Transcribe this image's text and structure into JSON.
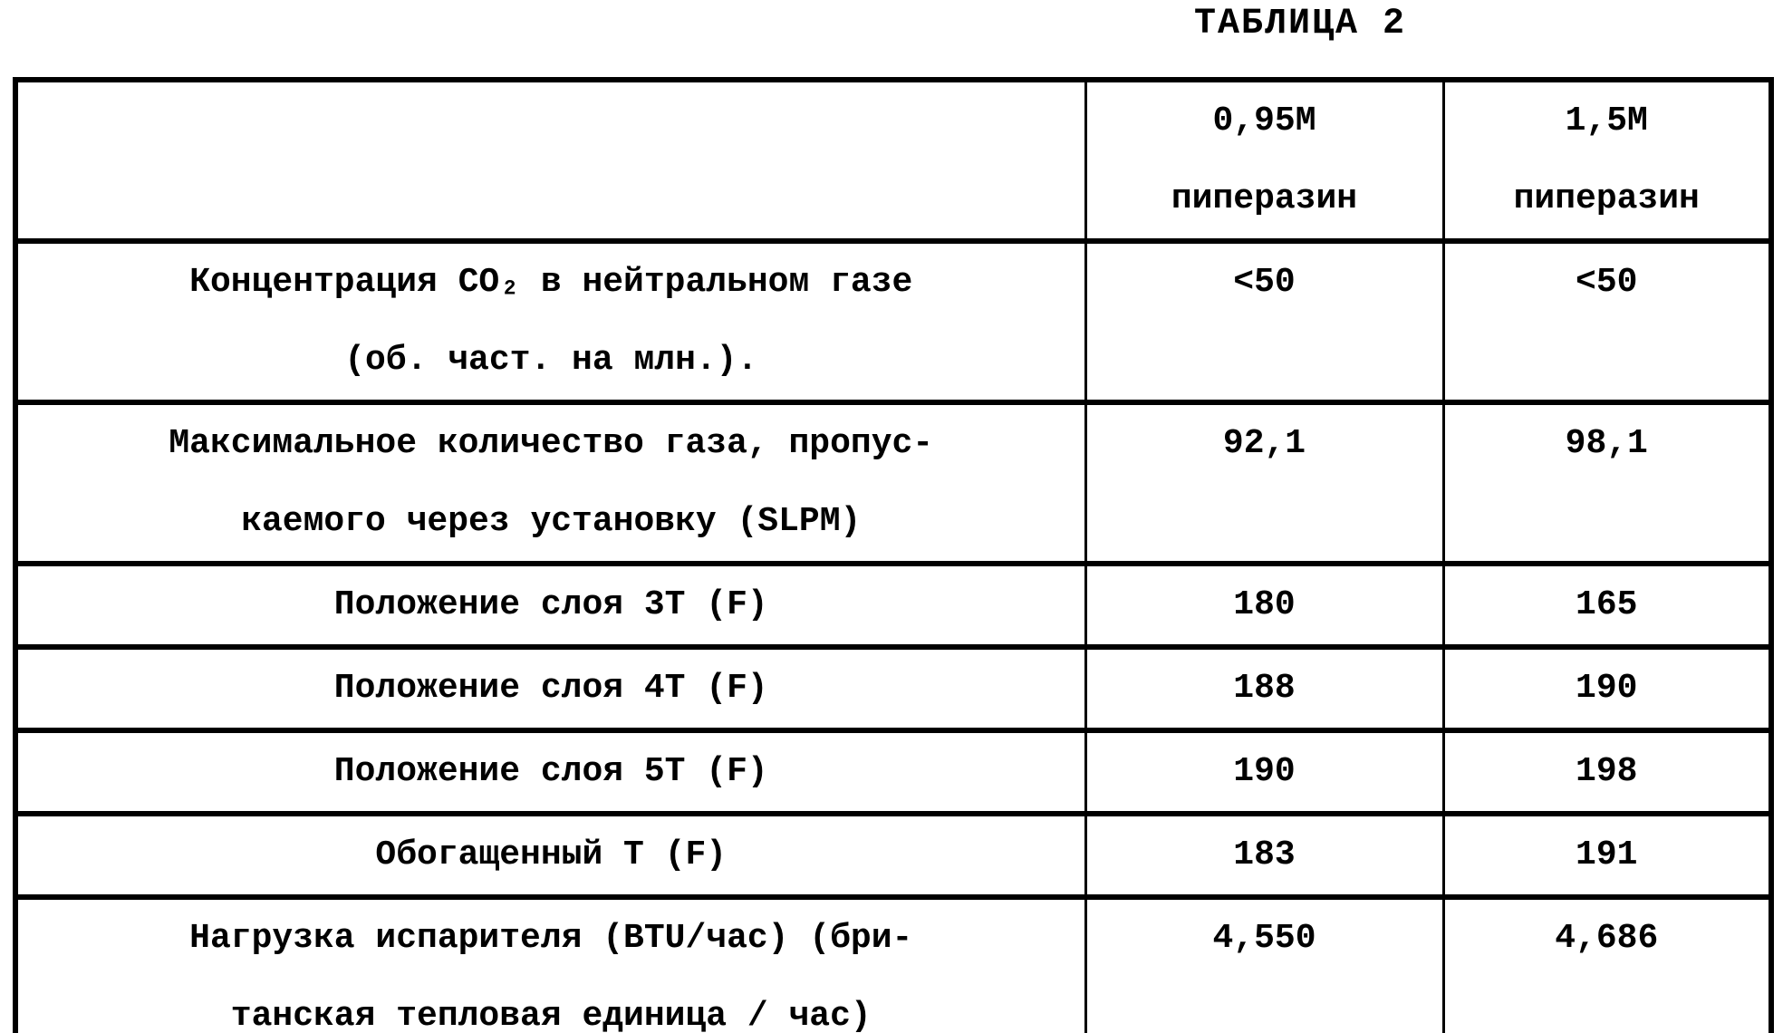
{
  "page_title": "ТАБЛИЦА 2",
  "table": {
    "header": {
      "col1": {
        "line1": "0,95M",
        "line2": "пиперазин"
      },
      "col2": {
        "line1": "1,5M",
        "line2": "пиперазин"
      }
    },
    "rows": [
      {
        "label1": "Концентрация CO₂ в нейтральном газе",
        "label2": "(об. част. на млн.).",
        "v1": "<50",
        "v2": "<50"
      },
      {
        "label1": "Максимальное количество газа, пропус-",
        "label2": "каемого через установку (SLPM)",
        "v1": "92,1",
        "v2": "98,1"
      },
      {
        "label1": "Положение слоя 3T (F)",
        "v1": "180",
        "v2": "165"
      },
      {
        "label1": "Положение слоя 4T (F)",
        "v1": "188",
        "v2": "190"
      },
      {
        "label1": "Положение слоя 5T (F)",
        "v1": "190",
        "v2": "198"
      },
      {
        "label1": "Обогащенный T (F)",
        "v1": "183",
        "v2": "191"
      },
      {
        "label1": "Нагрузка испарителя (BTU/час) (бри-",
        "label2": "танская тепловая единица / час)",
        "v1": "4,550",
        "v2": "4,686"
      }
    ]
  }
}
